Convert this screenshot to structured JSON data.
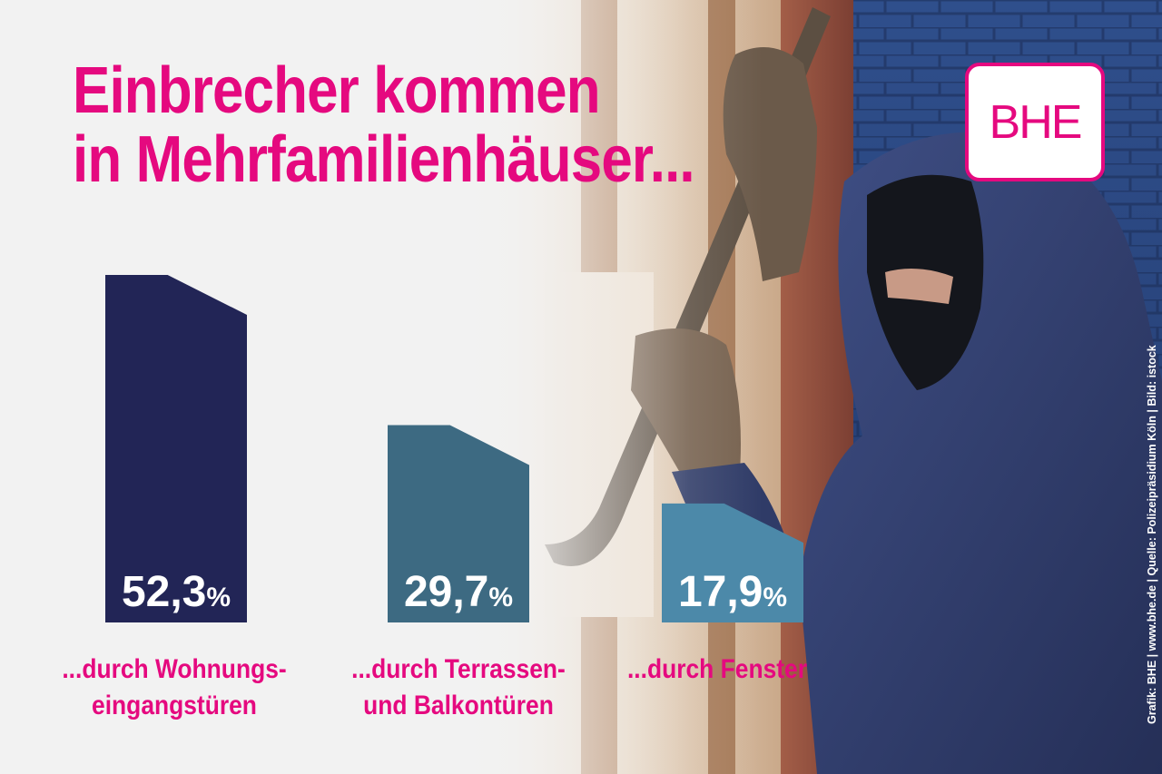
{
  "title": {
    "line1": "Einbrecher kommen",
    "line2": "in Mehrfamilienhäuser..."
  },
  "logo": {
    "text": "BHE",
    "color": "#e5097f"
  },
  "credit": "Grafik: BHE | www.bhe.de | Quelle: Polizeipräsidium Köln | Bild: istock",
  "colors": {
    "accent": "#e5097f",
    "bar_1": "#222556",
    "bar_2": "#3d6a82",
    "bar_3": "#4c89a9",
    "bar_text": "#ffffff"
  },
  "chart_data": {
    "type": "bar",
    "title": "Einbrecher kommen in Mehrfamilienhäuser...",
    "unit": "%",
    "categories": [
      "...durch Wohnungs-\neingangstüren",
      "...durch Terrassen-\nund Balkontüren",
      "...durch Fenster"
    ],
    "values": [
      52.3,
      29.7,
      17.9
    ],
    "value_labels": [
      "52,3",
      "29,7",
      "17,9"
    ],
    "ylim": [
      0,
      52.3
    ],
    "grid": false,
    "legend": "none"
  }
}
